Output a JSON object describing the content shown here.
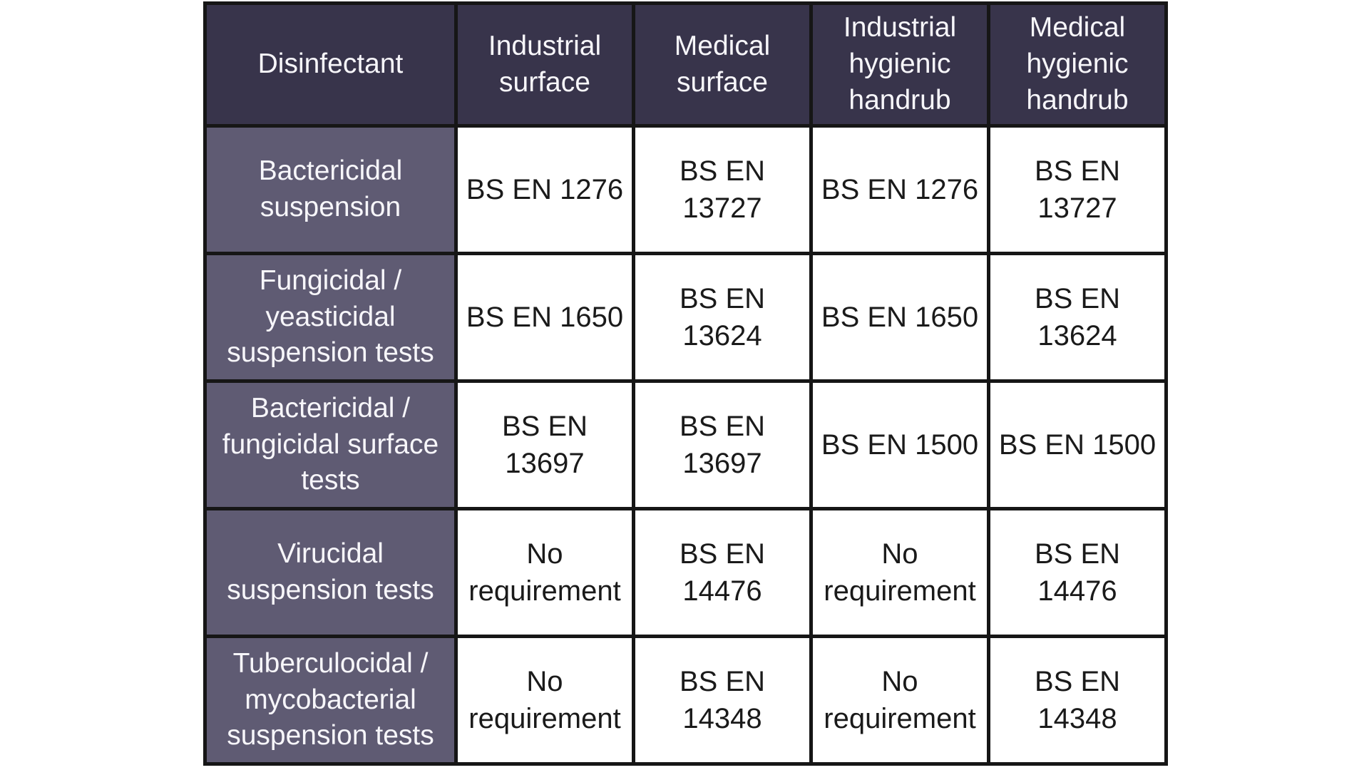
{
  "colors": {
    "header_bg": "#38344b",
    "row_label_bg": "#5f5b73",
    "data_cell_bg": "#ffffff",
    "border": "#161616",
    "header_text": "#f7f6fa",
    "data_text": "#1a1a1a"
  },
  "table": {
    "columns": [
      "Disinfectant",
      "Industrial\nsurface",
      "Medical\nsurface",
      "Industrial\nhygienic\nhandrub",
      "Medical\nhygienic\nhandrub"
    ],
    "rows": [
      {
        "label": "Bactericidal\nsuspension",
        "cells": [
          "BS EN 1276",
          "BS EN\n13727",
          "BS EN 1276",
          "BS EN\n13727"
        ]
      },
      {
        "label": "Fungicidal /\nyeasticidal\nsuspension tests",
        "cells": [
          "BS EN 1650",
          "BS EN\n13624",
          "BS EN 1650",
          "BS EN\n13624"
        ]
      },
      {
        "label": "Bactericidal /\nfungicidal surface\ntests",
        "cells": [
          "BS EN\n13697",
          "BS EN\n13697",
          "BS EN 1500",
          "BS EN 1500"
        ]
      },
      {
        "label": "Virucidal\nsuspension tests",
        "cells": [
          "No\nrequirement",
          "BS EN\n14476",
          "No\nrequirement",
          "BS EN\n14476"
        ]
      },
      {
        "label": "Tuberculocidal /\nmycobacterial\nsuspension tests",
        "cells": [
          "No\nrequirement",
          "BS EN\n14348",
          "No\nrequirement",
          "BS EN\n14348"
        ]
      }
    ]
  }
}
